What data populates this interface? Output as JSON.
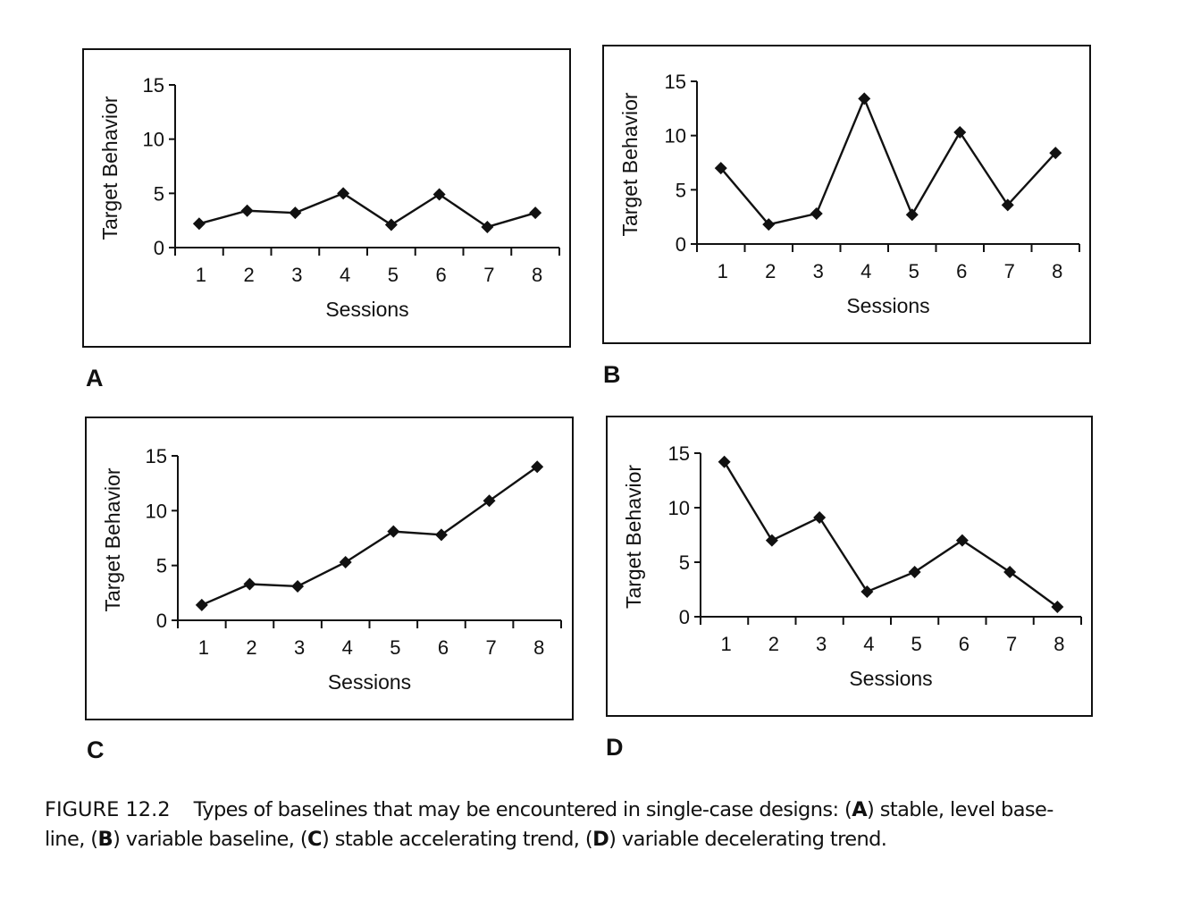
{
  "chart_data": [
    {
      "panel": "A",
      "type": "line",
      "xlabel": "Sessions",
      "ylabel": "Target Behavior",
      "categories": [
        "1",
        "2",
        "3",
        "4",
        "5",
        "6",
        "7",
        "8"
      ],
      "values": [
        2.2,
        3.4,
        3.2,
        5.0,
        2.1,
        4.9,
        1.9,
        3.2
      ],
      "yticks": [
        "0",
        "5",
        "10",
        "15"
      ],
      "ylim": [
        0,
        15
      ],
      "marker": "diamond"
    },
    {
      "panel": "B",
      "type": "line",
      "xlabel": "Sessions",
      "ylabel": "Target Behavior",
      "categories": [
        "1",
        "2",
        "3",
        "4",
        "5",
        "6",
        "7",
        "8"
      ],
      "values": [
        7.0,
        1.8,
        2.8,
        13.4,
        2.7,
        10.3,
        3.6,
        8.4
      ],
      "yticks": [
        "0",
        "5",
        "10",
        "15"
      ],
      "ylim": [
        0,
        15
      ],
      "marker": "diamond"
    },
    {
      "panel": "C",
      "type": "line",
      "xlabel": "Sessions",
      "ylabel": "Target Behavior",
      "categories": [
        "1",
        "2",
        "3",
        "4",
        "5",
        "6",
        "7",
        "8"
      ],
      "values": [
        1.4,
        3.3,
        3.1,
        5.3,
        8.1,
        7.8,
        10.9,
        14.0
      ],
      "yticks": [
        "0",
        "5",
        "10",
        "15"
      ],
      "ylim": [
        0,
        15
      ],
      "marker": "diamond"
    },
    {
      "panel": "D",
      "type": "line",
      "xlabel": "Sessions",
      "ylabel": "Target Behavior",
      "categories": [
        "1",
        "2",
        "3",
        "4",
        "5",
        "6",
        "7",
        "8"
      ],
      "values": [
        14.2,
        7.0,
        9.1,
        2.3,
        4.1,
        7.0,
        4.1,
        0.9
      ],
      "yticks": [
        "0",
        "5",
        "10",
        "15"
      ],
      "ylim": [
        0,
        15
      ],
      "marker": "diamond"
    }
  ],
  "caption": {
    "label": "FIGURE 12.2",
    "line1_pre": "Types of baselines that may be encountered in single-case designs: (",
    "a": "A",
    "line1_a": ") stable, level base-",
    "line2_pre": "line, (",
    "b": "B",
    "line2_b": ") variable baseline, (",
    "c": "C",
    "line2_c": ") stable accelerating trend, (",
    "d": "D",
    "line2_d": ") variable decelerating trend."
  }
}
